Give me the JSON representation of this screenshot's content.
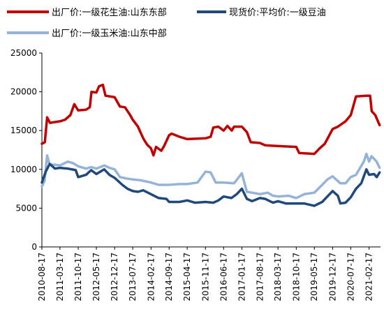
{
  "chart_data": {
    "type": "line",
    "title": "",
    "xlabel": "",
    "ylabel": "",
    "ylim": [
      0,
      25000
    ],
    "yticks": [
      "0",
      "5000",
      "10000",
      "15000",
      "20000",
      "25000"
    ],
    "grid": false,
    "legend_position": "top",
    "x_tick_labels": [
      "2010-08-17",
      "2011-03-17",
      "2011-10-17",
      "2012-05-17",
      "2012-12-17",
      "2013-07-17",
      "2014-02-17",
      "2014-09-17",
      "2015-04-17",
      "2015-11-17",
      "2016-06-17",
      "2017-01-17",
      "2017-08-17",
      "2018-03-17",
      "2018-10-17",
      "2019-05-17",
      "2019-12-17",
      "2020-07-17",
      "2021-02-17"
    ],
    "x_range": [
      "2010-08-17",
      "2021-07-01"
    ],
    "series": [
      {
        "name": "出厂价:一级花生油:山东东部",
        "color": "#c00000",
        "points": [
          [
            "2010-08-17",
            13300
          ],
          [
            "2010-09-20",
            13500
          ],
          [
            "2010-10-17",
            16700
          ],
          [
            "2010-11-20",
            16000
          ],
          [
            "2011-01-17",
            16100
          ],
          [
            "2011-03-17",
            16200
          ],
          [
            "2011-05-17",
            16400
          ],
          [
            "2011-07-17",
            17000
          ],
          [
            "2011-09-01",
            18400
          ],
          [
            "2011-10-17",
            17600
          ],
          [
            "2012-01-17",
            17700
          ],
          [
            "2012-03-01",
            18000
          ],
          [
            "2012-03-20",
            20000
          ],
          [
            "2012-05-17",
            19900
          ],
          [
            "2012-06-17",
            20700
          ],
          [
            "2012-08-01",
            20900
          ],
          [
            "2012-09-01",
            19500
          ],
          [
            "2012-12-17",
            19300
          ],
          [
            "2013-02-17",
            18100
          ],
          [
            "2013-04-17",
            18000
          ],
          [
            "2013-06-17",
            17000
          ],
          [
            "2013-07-17",
            16400
          ],
          [
            "2013-09-17",
            15500
          ],
          [
            "2013-11-17",
            14000
          ],
          [
            "2014-01-01",
            13200
          ],
          [
            "2014-02-17",
            12700
          ],
          [
            "2014-03-17",
            11800
          ],
          [
            "2014-04-17",
            12900
          ],
          [
            "2014-06-17",
            12400
          ],
          [
            "2014-07-20",
            13000
          ],
          [
            "2014-09-17",
            14400
          ],
          [
            "2014-10-17",
            14600
          ],
          [
            "2015-01-17",
            14200
          ],
          [
            "2015-04-17",
            13900
          ],
          [
            "2015-11-17",
            14000
          ],
          [
            "2016-01-17",
            14200
          ],
          [
            "2016-02-17",
            15400
          ],
          [
            "2016-04-17",
            15500
          ],
          [
            "2016-06-17",
            15000
          ],
          [
            "2016-08-01",
            15600
          ],
          [
            "2016-09-20",
            15000
          ],
          [
            "2016-10-17",
            15500
          ],
          [
            "2017-01-17",
            15500
          ],
          [
            "2017-03-17",
            14800
          ],
          [
            "2017-05-01",
            13500
          ],
          [
            "2017-08-17",
            13400
          ],
          [
            "2017-10-17",
            13100
          ],
          [
            "2018-03-17",
            13000
          ],
          [
            "2018-10-17",
            12900
          ],
          [
            "2018-11-20",
            12100
          ],
          [
            "2019-05-17",
            12000
          ],
          [
            "2019-07-17",
            12700
          ],
          [
            "2019-09-17",
            13300
          ],
          [
            "2019-12-17",
            15200
          ],
          [
            "2020-02-17",
            15500
          ],
          [
            "2020-05-17",
            16200
          ],
          [
            "2020-07-17",
            17000
          ],
          [
            "2020-09-17",
            19400
          ],
          [
            "2021-01-17",
            19500
          ],
          [
            "2021-03-01",
            19500
          ],
          [
            "2021-03-20",
            17500
          ],
          [
            "2021-05-01",
            17000
          ],
          [
            "2021-06-20",
            15700
          ]
        ]
      },
      {
        "name": "现货价:平均价:一级豆油",
        "color": "#1f497d",
        "points": [
          [
            "2010-08-17",
            8300
          ],
          [
            "2010-10-01",
            9700
          ],
          [
            "2010-11-17",
            10700
          ],
          [
            "2011-01-17",
            10100
          ],
          [
            "2011-03-17",
            10200
          ],
          [
            "2011-06-17",
            10100
          ],
          [
            "2011-09-17",
            9900
          ],
          [
            "2011-10-17",
            9000
          ],
          [
            "2012-01-17",
            9300
          ],
          [
            "2012-03-17",
            9900
          ],
          [
            "2012-05-17",
            9400
          ],
          [
            "2012-08-17",
            10000
          ],
          [
            "2012-10-17",
            9300
          ],
          [
            "2012-12-17",
            8900
          ],
          [
            "2013-03-17",
            8000
          ],
          [
            "2013-05-17",
            7500
          ],
          [
            "2013-07-17",
            7200
          ],
          [
            "2013-09-17",
            7100
          ],
          [
            "2013-11-17",
            7300
          ],
          [
            "2014-02-17",
            6800
          ],
          [
            "2014-05-17",
            6300
          ],
          [
            "2014-08-17",
            6200
          ],
          [
            "2014-09-17",
            5800
          ],
          [
            "2015-01-17",
            5800
          ],
          [
            "2015-04-17",
            6000
          ],
          [
            "2015-07-17",
            5700
          ],
          [
            "2015-11-17",
            5800
          ],
          [
            "2016-02-17",
            5700
          ],
          [
            "2016-04-17",
            6000
          ],
          [
            "2016-06-17",
            6500
          ],
          [
            "2016-09-17",
            6300
          ],
          [
            "2016-11-17",
            6800
          ],
          [
            "2017-01-17",
            7500
          ],
          [
            "2017-03-17",
            6200
          ],
          [
            "2017-05-17",
            5900
          ],
          [
            "2017-08-17",
            6300
          ],
          [
            "2017-10-17",
            6200
          ],
          [
            "2018-01-17",
            5700
          ],
          [
            "2018-03-17",
            5900
          ],
          [
            "2018-06-17",
            5600
          ],
          [
            "2018-10-17",
            5600
          ],
          [
            "2019-01-17",
            5600
          ],
          [
            "2019-05-17",
            5300
          ],
          [
            "2019-08-17",
            5800
          ],
          [
            "2019-10-17",
            6500
          ],
          [
            "2019-12-17",
            7200
          ],
          [
            "2020-02-17",
            6600
          ],
          [
            "2020-03-17",
            5600
          ],
          [
            "2020-05-17",
            5700
          ],
          [
            "2020-07-17",
            6400
          ],
          [
            "2020-09-17",
            7500
          ],
          [
            "2020-11-17",
            8200
          ],
          [
            "2021-01-17",
            10000
          ],
          [
            "2021-02-17",
            9300
          ],
          [
            "2021-04-17",
            9400
          ],
          [
            "2021-05-17",
            9000
          ],
          [
            "2021-06-20",
            9600
          ]
        ]
      },
      {
        "name": "出厂价:一级玉米油:山东中部",
        "color": "#95b3d7",
        "points": [
          [
            "2010-08-17",
            7800
          ],
          [
            "2010-09-17",
            8500
          ],
          [
            "2010-10-17",
            11800
          ],
          [
            "2010-11-17",
            10600
          ],
          [
            "2011-01-17",
            10600
          ],
          [
            "2011-03-17",
            10500
          ],
          [
            "2011-06-17",
            11000
          ],
          [
            "2011-08-17",
            10800
          ],
          [
            "2011-10-17",
            10400
          ],
          [
            "2012-01-17",
            10100
          ],
          [
            "2012-03-17",
            10300
          ],
          [
            "2012-05-17",
            10100
          ],
          [
            "2012-08-17",
            10500
          ],
          [
            "2012-10-17",
            10200
          ],
          [
            "2012-12-17",
            10000
          ],
          [
            "2013-02-17",
            9000
          ],
          [
            "2013-05-17",
            8800
          ],
          [
            "2013-07-17",
            8700
          ],
          [
            "2013-10-17",
            8600
          ],
          [
            "2014-02-17",
            8300
          ],
          [
            "2014-05-17",
            8000
          ],
          [
            "2014-09-17",
            8000
          ],
          [
            "2015-01-17",
            8100
          ],
          [
            "2015-04-17",
            8100
          ],
          [
            "2015-08-17",
            8300
          ],
          [
            "2015-11-17",
            9700
          ],
          [
            "2016-01-17",
            9600
          ],
          [
            "2016-03-17",
            8300
          ],
          [
            "2016-06-17",
            8300
          ],
          [
            "2016-10-17",
            8200
          ],
          [
            "2017-01-17",
            9500
          ],
          [
            "2017-03-17",
            7100
          ],
          [
            "2017-05-17",
            7000
          ],
          [
            "2017-08-17",
            6800
          ],
          [
            "2017-11-17",
            7000
          ],
          [
            "2018-01-17",
            6600
          ],
          [
            "2018-03-17",
            6500
          ],
          [
            "2018-07-17",
            6600
          ],
          [
            "2018-10-17",
            6300
          ],
          [
            "2019-01-17",
            6800
          ],
          [
            "2019-05-17",
            7000
          ],
          [
            "2019-08-17",
            8000
          ],
          [
            "2019-10-17",
            8700
          ],
          [
            "2019-12-17",
            9100
          ],
          [
            "2020-03-17",
            8200
          ],
          [
            "2020-05-17",
            8200
          ],
          [
            "2020-07-17",
            9000
          ],
          [
            "2020-09-17",
            9300
          ],
          [
            "2020-12-17",
            11000
          ],
          [
            "2021-01-17",
            12000
          ],
          [
            "2021-02-17",
            11000
          ],
          [
            "2021-03-17",
            11700
          ],
          [
            "2021-05-17",
            11000
          ],
          [
            "2021-06-20",
            10200
          ]
        ]
      }
    ]
  }
}
